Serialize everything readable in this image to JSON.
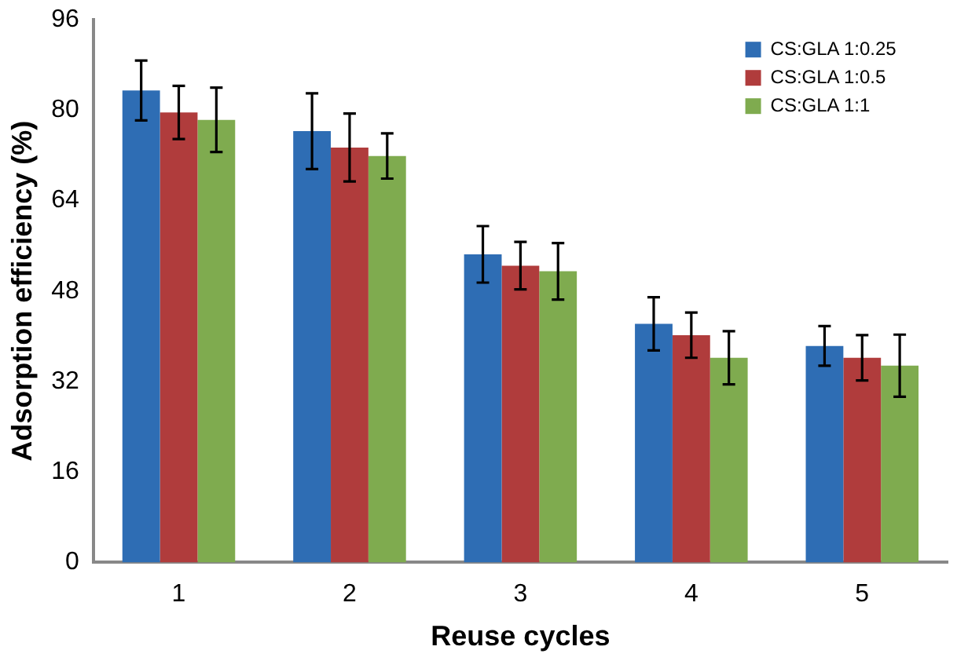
{
  "chart_data": {
    "type": "bar",
    "xlabel": "Reuse cycles",
    "ylabel": "Adsorption efficiency (%)",
    "categories": [
      "1",
      "2",
      "3",
      "4",
      "5"
    ],
    "series": [
      {
        "name": "CS:GLA 1:0.25",
        "color": "#2e6db4",
        "values": [
          83.5,
          76.3,
          54.5,
          42.2,
          38.3
        ],
        "errors": [
          5.3,
          6.7,
          5,
          4.7,
          3.5
        ]
      },
      {
        "name": "CS:GLA 1:0.5",
        "color": "#b03c3c",
        "values": [
          79.6,
          73.4,
          52.5,
          40.2,
          36.2
        ],
        "errors": [
          4.7,
          6,
          4.2,
          4,
          4
        ]
      },
      {
        "name": "CS:GLA 1:1",
        "color": "#7fab4f",
        "values": [
          78.3,
          71.9,
          51.5,
          36.2,
          34.8
        ],
        "errors": [
          5.7,
          4,
          5,
          4.7,
          5.5
        ]
      }
    ],
    "ylim": [
      0,
      96
    ],
    "yticks": [
      0,
      16,
      32,
      48,
      64,
      80,
      96
    ],
    "grid": false,
    "legend": "top right"
  }
}
